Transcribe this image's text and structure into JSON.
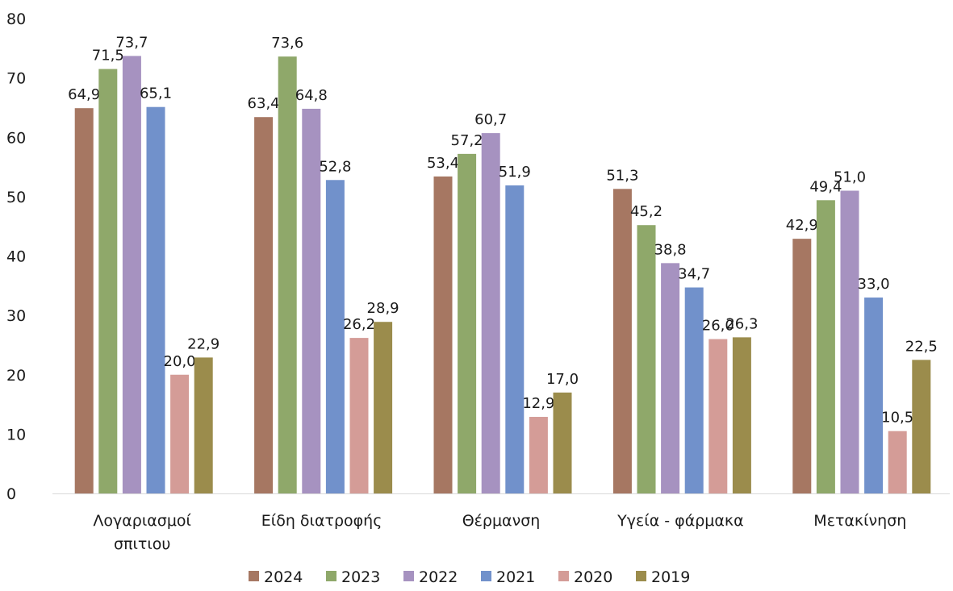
{
  "chart_data": {
    "type": "bar",
    "categories": [
      [
        "Λογαριασμοί",
        "σπιτιου"
      ],
      [
        "Είδη διατροφής"
      ],
      [
        "Θέρμανση"
      ],
      [
        "Υγεία - φάρμακα"
      ],
      [
        "Μετακίνηση"
      ]
    ],
    "ylim": [
      0,
      80
    ],
    "yticks": [
      "0",
      "10",
      "20",
      "30",
      "40",
      "50",
      "60",
      "70",
      "80"
    ],
    "grid": false,
    "legend_position": "bottom",
    "series": [
      {
        "name": "2024",
        "color": "#a67762",
        "values": [
          64.9,
          63.4,
          53.4,
          51.3,
          42.9
        ],
        "labels": [
          "64,9",
          "63,4",
          "53,4",
          "51,3",
          "42,9"
        ]
      },
      {
        "name": "2023",
        "color": "#8fa86a",
        "values": [
          71.5,
          73.6,
          57.2,
          45.2,
          49.4
        ],
        "labels": [
          "71,5",
          "73,6",
          "57,2",
          "45,2",
          "49,4"
        ]
      },
      {
        "name": "2022",
        "color": "#a692c0",
        "values": [
          73.7,
          64.8,
          60.7,
          38.8,
          51.0
        ],
        "labels": [
          "73,7",
          "64,8",
          "60,7",
          "38,8",
          "51,0"
        ]
      },
      {
        "name": "2021",
        "color": "#7191cb",
        "values": [
          65.1,
          52.8,
          51.9,
          34.7,
          33.0
        ],
        "labels": [
          "65,1",
          "52,8",
          "51,9",
          "34,7",
          "33,0"
        ]
      },
      {
        "name": "2020",
        "color": "#d49c97",
        "values": [
          20.0,
          26.2,
          12.9,
          26.0,
          10.5
        ],
        "labels": [
          "20,0",
          "26,2",
          "12,9",
          "26,0",
          "10,5"
        ]
      },
      {
        "name": "2019",
        "color": "#9b8c4c",
        "values": [
          22.9,
          28.9,
          17.0,
          26.3,
          22.5
        ],
        "labels": [
          "22,9",
          "28,9",
          "17,0",
          "26,3",
          "22,5"
        ]
      }
    ]
  }
}
